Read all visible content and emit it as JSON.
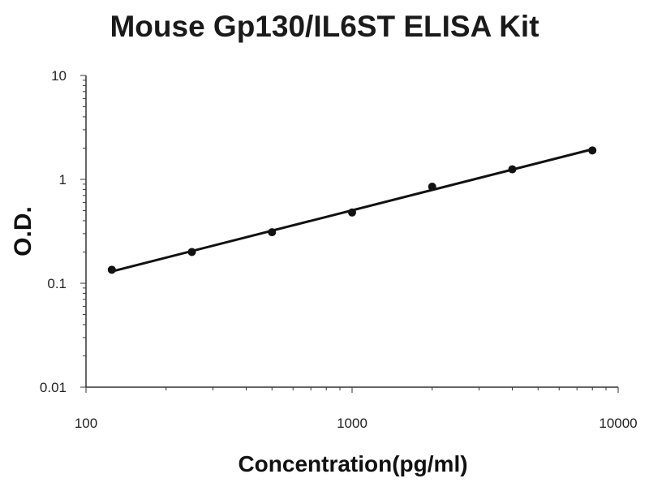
{
  "chart_data": {
    "type": "scatter",
    "title": "Mouse Gp130/IL6ST ELISA Kit",
    "xlabel": "Concentration(pg/ml)",
    "ylabel": "O.D.",
    "x_scale": "log",
    "y_scale": "log",
    "xlim": [
      100,
      10000
    ],
    "ylim": [
      0.01,
      10
    ],
    "x_ticks": [
      "100",
      "1000",
      "10000"
    ],
    "y_ticks": [
      "10",
      "1",
      "0.1",
      "0.01"
    ],
    "grid": false,
    "legend": "none",
    "series": [
      {
        "x": [
          125,
          250,
          500,
          1000,
          2000,
          4000,
          8000
        ],
        "y": [
          0.135,
          0.2,
          0.31,
          0.48,
          0.85,
          1.25,
          1.9
        ]
      }
    ],
    "fit_line": {
      "x": [
        125,
        8000
      ],
      "y": [
        0.13,
        1.95
      ]
    },
    "colors": {
      "points": "#111111",
      "line": "#111111",
      "axis": "#333333"
    }
  }
}
